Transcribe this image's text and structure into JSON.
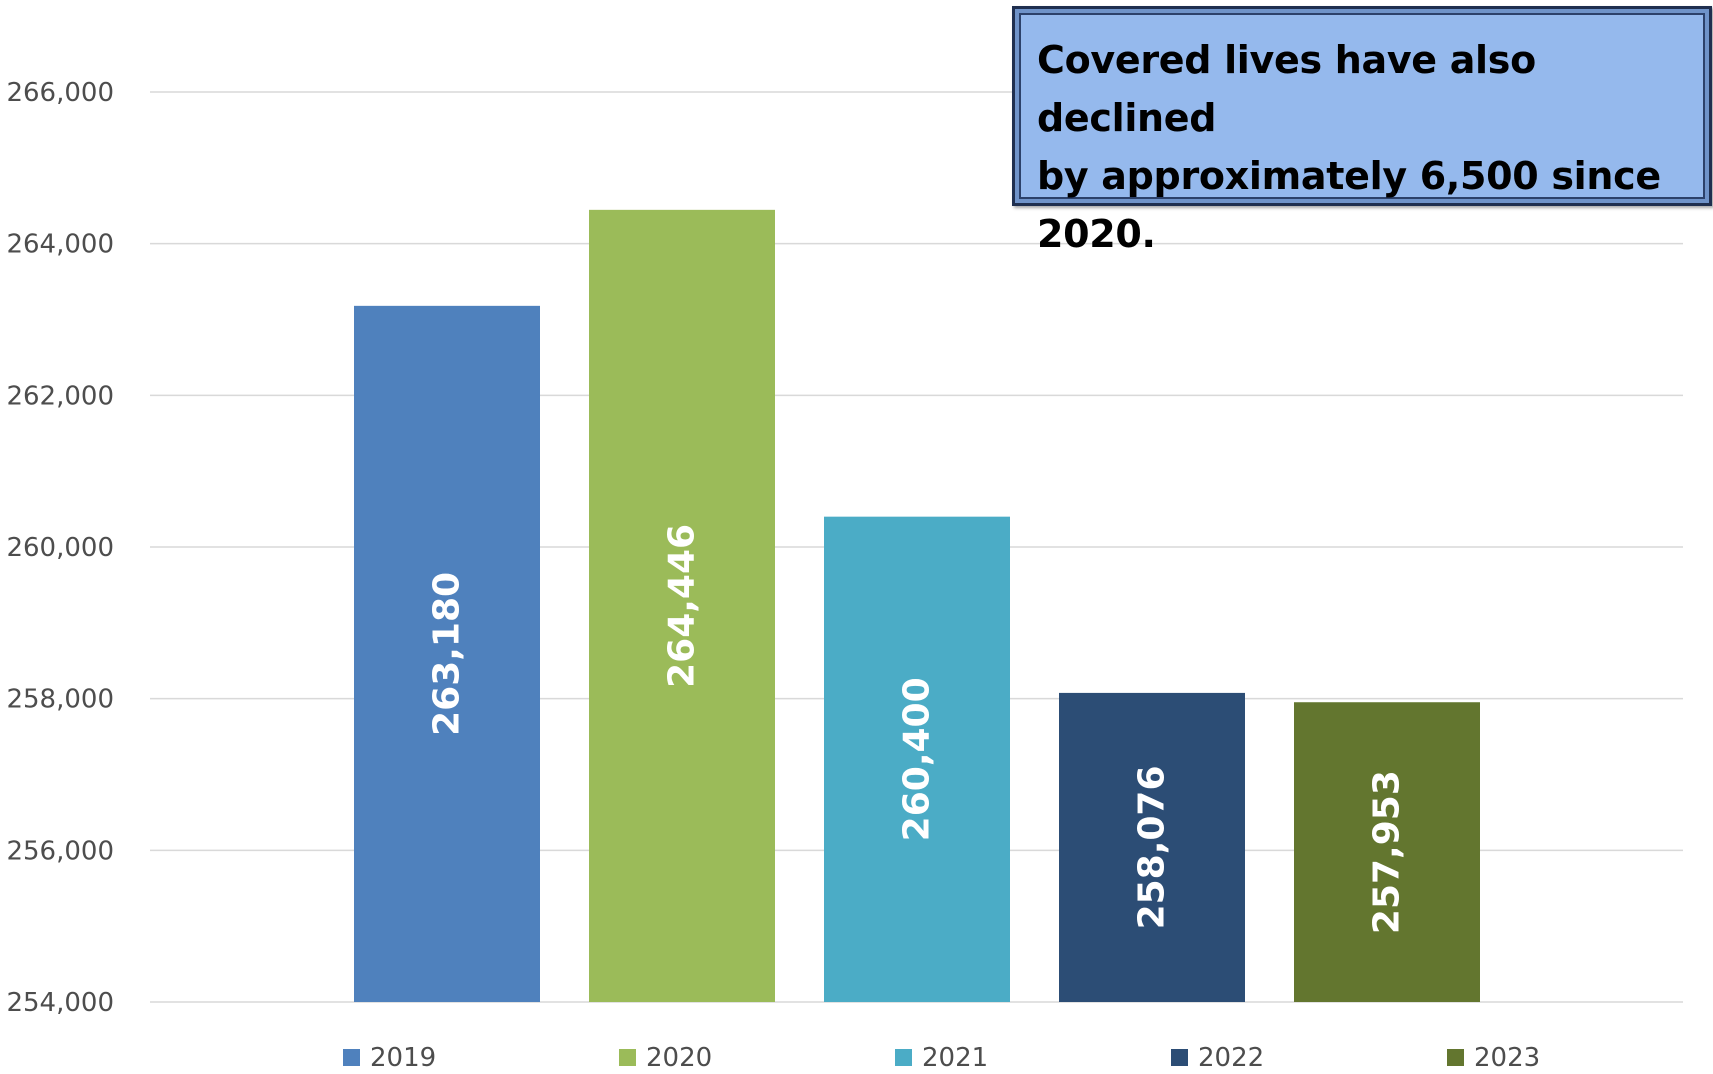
{
  "chart_data": {
    "type": "bar",
    "categories": [
      "2019",
      "2020",
      "2021",
      "2022",
      "2023"
    ],
    "values": [
      263180,
      264446,
      260400,
      258076,
      257953
    ],
    "value_labels": [
      "263,180",
      "264,446",
      "260,400",
      "258,076",
      "257,953"
    ],
    "colors": [
      "#4f81bd",
      "#9bbb59",
      "#4bacc6",
      "#2c4d75",
      "#63762f"
    ],
    "ylim": [
      254000,
      266000
    ],
    "yticks": [
      254000,
      256000,
      258000,
      260000,
      262000,
      264000,
      266000
    ],
    "ytick_labels": [
      "254,000",
      "256,000",
      "258,000",
      "260,000",
      "262,000",
      "264,000",
      "266,000"
    ],
    "grid": true,
    "legend": "bottom",
    "title": "",
    "xlabel": "",
    "ylabel": ""
  },
  "callout": {
    "line1": "Covered lives have also declined",
    "line2": "by approximately 6,500 since",
    "line3": "2020."
  }
}
